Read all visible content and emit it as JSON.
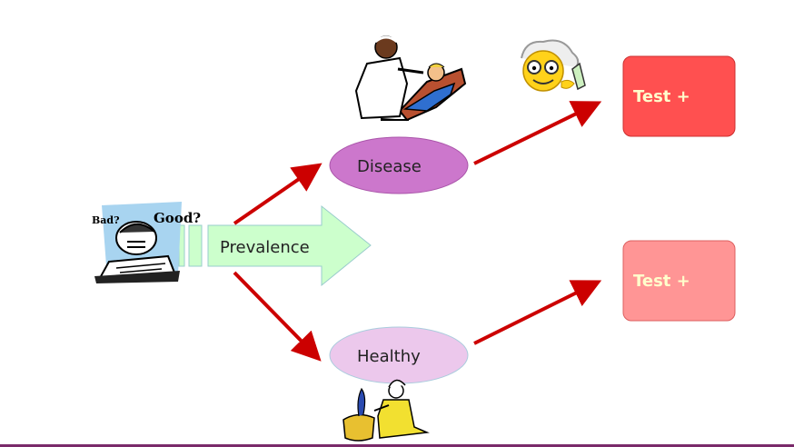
{
  "diagram": {
    "prevalence_label": "Prevalence",
    "disease_label": "Disease",
    "healthy_label": "Healthy",
    "test_top_label": "Test +",
    "test_bottom_label": "Test +",
    "clipart_student_bad_text": "Bad?",
    "clipart_student_good_text": "Good?"
  },
  "colors": {
    "arrow_red": "#cc0000",
    "prevalence_arrow_fill": "#ccffcc",
    "prevalence_arrow_stroke": "#99cccc",
    "disease_fill": "#cc77cc",
    "healthy_fill": "#ecc8ec",
    "test_top_fill": "#ff5050",
    "test_bottom_fill": "#ff9595",
    "test_text": "#ffffcc"
  },
  "icons": [
    "student-clipart-icon",
    "doctor-patient-clipart-icon",
    "scientist-smiley-icon",
    "snake-charmer-clipart-icon"
  ]
}
